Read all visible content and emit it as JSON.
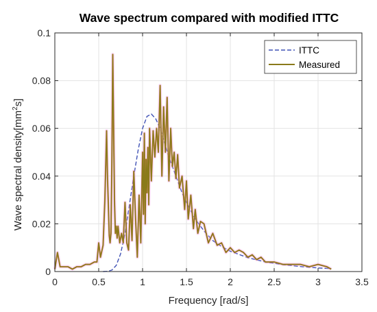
{
  "chart_data": {
    "type": "line",
    "title": "Wave spectrum compared with modified ITTC",
    "xlabel": "Frequency [rad/s]",
    "ylabel_main": "Wave spectral density[mm",
    "ylabel_sup": "2",
    "ylabel_tail": "s]",
    "xlim": [
      0,
      3.5
    ],
    "ylim": [
      0,
      0.1
    ],
    "x_ticks": [
      0,
      0.5,
      1,
      1.5,
      2,
      2.5,
      3,
      3.5
    ],
    "x_tick_labels": [
      "0",
      "0.5",
      "1",
      "1.5",
      "2",
      "2.5",
      "3",
      "3.5"
    ],
    "y_ticks": [
      0,
      0.02,
      0.04,
      0.06,
      0.08,
      0.1
    ],
    "y_tick_labels": [
      "0",
      "0.02",
      "0.04",
      "0.06",
      "0.08",
      "0.1"
    ],
    "grid": true,
    "legend_position": "top-right",
    "series": [
      {
        "name": "ITTC",
        "style": "dashed",
        "color": "#3f51b5",
        "x": [
          0.55,
          0.6,
          0.65,
          0.7,
          0.75,
          0.8,
          0.85,
          0.9,
          0.95,
          1.0,
          1.05,
          1.1,
          1.15,
          1.2,
          1.25,
          1.3,
          1.35,
          1.4,
          1.45,
          1.5,
          1.6,
          1.7,
          1.8,
          1.9,
          2.0,
          2.2,
          2.4,
          2.6,
          2.8,
          3.0,
          3.15
        ],
        "y": [
          0.0,
          0.0001,
          0.0006,
          0.0026,
          0.0075,
          0.016,
          0.028,
          0.04,
          0.051,
          0.06,
          0.065,
          0.066,
          0.064,
          0.06,
          0.054,
          0.048,
          0.043,
          0.038,
          0.033,
          0.029,
          0.022,
          0.017,
          0.013,
          0.0105,
          0.0085,
          0.0058,
          0.004,
          0.0029,
          0.0021,
          0.0015,
          0.0012
        ]
      },
      {
        "name": "Measured",
        "style": "solid",
        "color": "#8a7a1a",
        "x": [
          0.0,
          0.03,
          0.06,
          0.1,
          0.15,
          0.2,
          0.25,
          0.3,
          0.35,
          0.4,
          0.45,
          0.48,
          0.5,
          0.52,
          0.55,
          0.57,
          0.59,
          0.6,
          0.62,
          0.63,
          0.64,
          0.65,
          0.66,
          0.67,
          0.68,
          0.69,
          0.7,
          0.71,
          0.72,
          0.74,
          0.76,
          0.78,
          0.8,
          0.82,
          0.84,
          0.86,
          0.88,
          0.9,
          0.92,
          0.94,
          0.96,
          0.98,
          1.0,
          1.01,
          1.02,
          1.03,
          1.04,
          1.05,
          1.06,
          1.07,
          1.08,
          1.1,
          1.12,
          1.14,
          1.16,
          1.18,
          1.2,
          1.22,
          1.24,
          1.26,
          1.28,
          1.3,
          1.32,
          1.34,
          1.36,
          1.38,
          1.4,
          1.42,
          1.45,
          1.48,
          1.5,
          1.52,
          1.55,
          1.58,
          1.6,
          1.63,
          1.66,
          1.7,
          1.75,
          1.8,
          1.85,
          1.9,
          1.95,
          2.0,
          2.05,
          2.1,
          2.15,
          2.2,
          2.25,
          2.3,
          2.35,
          2.4,
          2.5,
          2.6,
          2.7,
          2.8,
          2.9,
          3.0,
          3.1,
          3.15
        ],
        "y": [
          0.001,
          0.008,
          0.002,
          0.002,
          0.002,
          0.001,
          0.002,
          0.002,
          0.003,
          0.003,
          0.004,
          0.004,
          0.012,
          0.006,
          0.011,
          0.03,
          0.059,
          0.04,
          0.015,
          0.012,
          0.016,
          0.045,
          0.091,
          0.06,
          0.03,
          0.016,
          0.019,
          0.014,
          0.019,
          0.012,
          0.016,
          0.012,
          0.029,
          0.012,
          0.009,
          0.028,
          0.013,
          0.042,
          0.022,
          0.006,
          0.032,
          0.012,
          0.05,
          0.024,
          0.058,
          0.02,
          0.047,
          0.033,
          0.052,
          0.028,
          0.06,
          0.038,
          0.059,
          0.048,
          0.06,
          0.05,
          0.078,
          0.04,
          0.069,
          0.05,
          0.073,
          0.038,
          0.06,
          0.044,
          0.05,
          0.039,
          0.049,
          0.035,
          0.04,
          0.026,
          0.038,
          0.022,
          0.032,
          0.018,
          0.026,
          0.016,
          0.021,
          0.02,
          0.012,
          0.016,
          0.011,
          0.012,
          0.008,
          0.01,
          0.008,
          0.009,
          0.008,
          0.006,
          0.007,
          0.005,
          0.006,
          0.004,
          0.004,
          0.003,
          0.003,
          0.003,
          0.002,
          0.003,
          0.002,
          0.001
        ]
      }
    ]
  }
}
